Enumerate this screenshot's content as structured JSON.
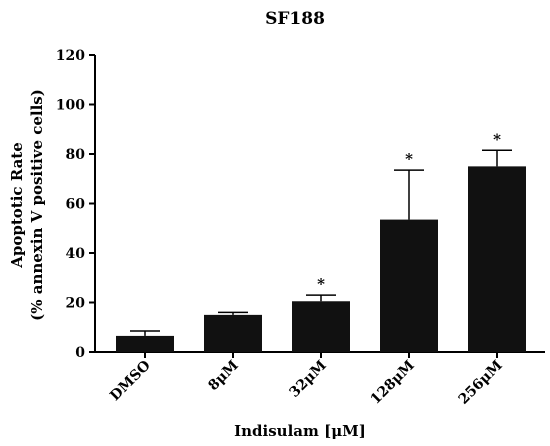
{
  "chart_data": {
    "type": "bar",
    "title": "SF188",
    "ylabel_line1": "Apoptotic Rate",
    "ylabel_line2": "(% annexin V positive cells)",
    "xlabel": "Indisulam [μM]",
    "ylim": [
      0,
      120
    ],
    "yticks": [
      "0",
      "20",
      "40",
      "60",
      "80",
      "100",
      "120"
    ],
    "categories": [
      "DMSO",
      "8μM",
      "32μM",
      "128μM",
      "256μM"
    ],
    "values": [
      6.5,
      15,
      20.5,
      53.5,
      75
    ],
    "error_upper": [
      2.0,
      1.0,
      2.5,
      20,
      6.5
    ],
    "significance": [
      "",
      "",
      "*",
      "*",
      "*"
    ],
    "bar_color": "#111111",
    "grid": false
  }
}
